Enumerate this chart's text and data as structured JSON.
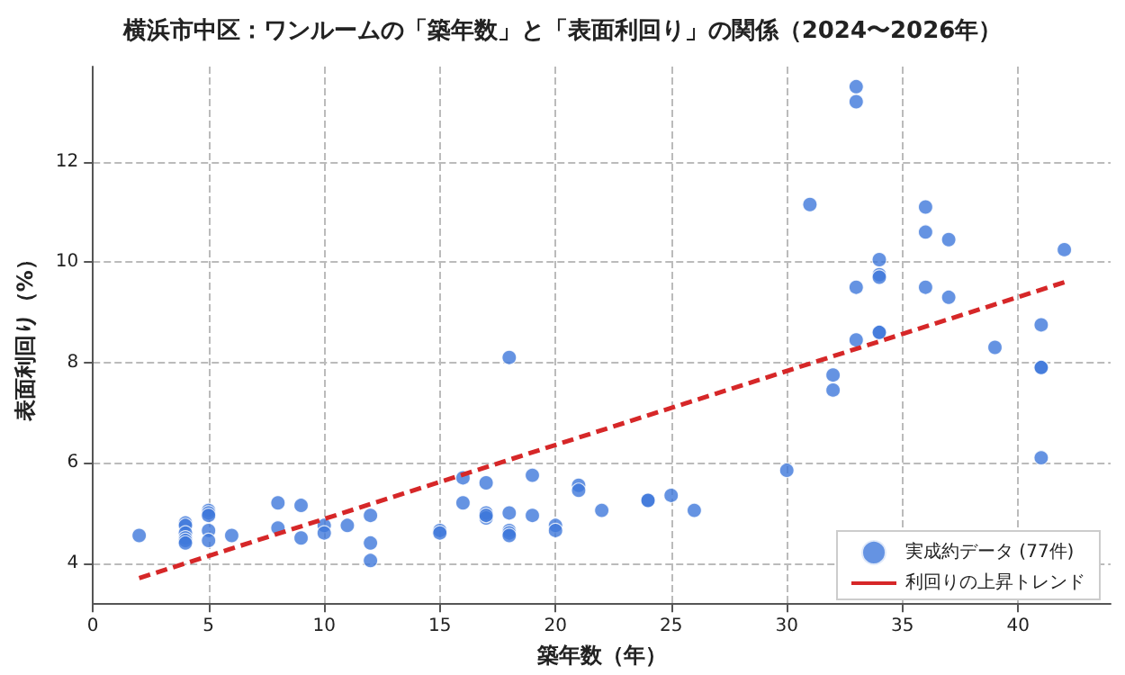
{
  "chart_data": {
    "type": "scatter",
    "title": "横浜市中区：ワンルームの「築年数」と「表面利回り」の関係（2024〜2026年）",
    "xlabel": "築年数（年）",
    "ylabel": "表面利回り（%）",
    "xlim": [
      0,
      44
    ],
    "xticks": [
      0,
      5,
      10,
      15,
      20,
      25,
      30,
      35,
      40
    ],
    "ylim": [
      3.2,
      13.9
    ],
    "yticks": [
      4,
      6,
      8,
      10,
      12
    ],
    "grid": true,
    "legend": "bottom right",
    "series": [
      {
        "name": "実成約データ (77件)",
        "color": "#3f78db",
        "marker": "circle",
        "x": [
          2,
          4,
          4,
          4,
          4,
          4,
          4,
          5,
          5,
          5,
          5,
          5,
          6,
          8,
          8,
          9,
          9,
          10,
          10,
          11,
          12,
          12,
          12,
          15,
          15,
          16,
          16,
          17,
          17,
          17,
          17,
          18,
          18,
          18,
          18,
          18,
          19,
          19,
          20,
          20,
          21,
          21,
          22,
          24,
          24,
          25,
          26,
          30,
          31,
          32,
          32,
          33,
          33,
          33,
          33,
          34,
          34,
          34,
          34,
          34,
          36,
          36,
          36,
          37,
          37,
          39,
          41,
          41,
          41,
          41,
          42
        ],
        "values": [
          4.55,
          4.8,
          4.75,
          4.6,
          4.5,
          4.45,
          4.4,
          5.05,
          5.0,
          4.95,
          4.65,
          4.45,
          4.55,
          5.2,
          4.7,
          5.15,
          4.5,
          4.75,
          4.6,
          4.75,
          4.95,
          4.4,
          4.05,
          4.65,
          4.6,
          5.7,
          5.2,
          5.6,
          5.0,
          4.9,
          4.95,
          8.1,
          5.0,
          4.65,
          4.6,
          4.55,
          5.75,
          4.95,
          4.75,
          4.65,
          5.55,
          5.45,
          5.05,
          5.25,
          5.25,
          5.35,
          5.05,
          5.85,
          11.15,
          7.75,
          7.45,
          13.5,
          13.2,
          9.5,
          8.45,
          10.05,
          9.75,
          9.7,
          8.6,
          8.6,
          11.1,
          10.6,
          9.5,
          10.45,
          9.3,
          8.3,
          8.75,
          7.9,
          7.9,
          6.1,
          10.25
        ]
      },
      {
        "name": "利回りの上昇トレンド",
        "type": "line",
        "color": "#d62728",
        "marker": "none",
        "line_style": "dashed",
        "x": [
          2,
          42
        ],
        "values": [
          3.7,
          9.6
        ]
      }
    ]
  }
}
